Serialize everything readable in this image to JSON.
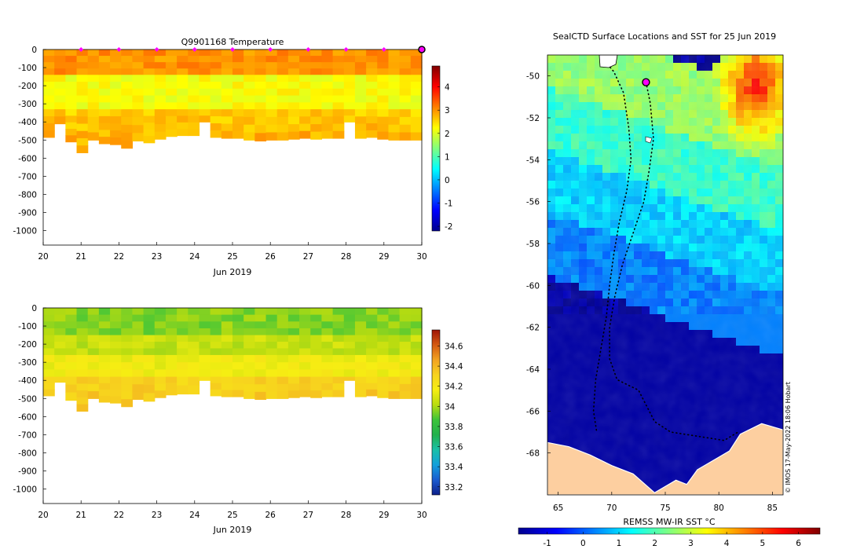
{
  "colors": {
    "jet": [
      "#00008f",
      "#0000ff",
      "#0080ff",
      "#00ffff",
      "#80ff80",
      "#ffff00",
      "#ff8000",
      "#ff0000",
      "#800000"
    ],
    "parula": [
      "#0d1f8a",
      "#1a5bd0",
      "#12a0dc",
      "#19c0a8",
      "#22b14c",
      "#3cc43a",
      "#b9dc10",
      "#f6ee12",
      "#f7d31e",
      "#f2a321",
      "#d55a12",
      "#9e1406"
    ],
    "land": "#fdcfa0",
    "profile_marker": "#ff00ff",
    "track": "#000000"
  },
  "chart_data": [
    {
      "type": "heatmap",
      "name": "temperature-section",
      "title": "Q9901168  Temperature",
      "xlabel": "Jun 2019",
      "ylabel": "",
      "x_ticks": [
        "20",
        "21",
        "22",
        "23",
        "24",
        "25",
        "26",
        "27",
        "28",
        "29",
        "30"
      ],
      "x_range": [
        20,
        30
      ],
      "y_ticks": [
        "0",
        "-100",
        "-200",
        "-300",
        "-400",
        "-500",
        "-600",
        "-700",
        "-800",
        "-900",
        "-1000"
      ],
      "y_range": [
        -1080,
        0
      ],
      "colorbar_ticks": [
        "4",
        "3",
        "2",
        "1",
        "0",
        "-1",
        "-2"
      ],
      "colorbar_range": [
        -2.2,
        4.9
      ],
      "colormap": "jet",
      "grid": false,
      "profile_dates": [
        21,
        22,
        23,
        24,
        25,
        26,
        27,
        28,
        29
      ],
      "last_profile_date": 30,
      "layers": [
        {
          "top": 0,
          "bottom": -140,
          "value": 3.0
        },
        {
          "top": -140,
          "bottom": -330,
          "value": 2.2
        },
        {
          "top": -330,
          "bottom": -1000,
          "value": 2.6
        }
      ],
      "profile_max_depths": [
        -485,
        -410,
        -510,
        -570,
        -500,
        -520,
        -525,
        -545,
        -505,
        -515,
        -495,
        -480,
        -475,
        -475,
        -400,
        -485,
        -490,
        -490,
        -500,
        -505,
        -500,
        -500,
        -495,
        -490,
        -495,
        -490,
        -490,
        -400,
        -490,
        -485,
        -495,
        -500,
        -500,
        -500
      ]
    },
    {
      "type": "heatmap",
      "name": "salinity-section",
      "title": "",
      "xlabel": "Jun 2019",
      "ylabel": "",
      "x_ticks": [
        "20",
        "21",
        "22",
        "23",
        "24",
        "25",
        "26",
        "27",
        "28",
        "29",
        "30"
      ],
      "x_range": [
        20,
        30
      ],
      "y_ticks": [
        "0",
        "-100",
        "-200",
        "-300",
        "-400",
        "-500",
        "-600",
        "-700",
        "-800",
        "-900",
        "-1000"
      ],
      "y_range": [
        -1080,
        0
      ],
      "colorbar_ticks": [
        "34.6",
        "34.4",
        "34.2",
        "34",
        "33.8",
        "33.6",
        "33.4",
        "33.2"
      ],
      "colorbar_range": [
        33.12,
        34.76
      ],
      "colormap": "parula",
      "grid": false,
      "layers": [
        {
          "top": 0,
          "bottom": -150,
          "value": 33.95
        },
        {
          "top": -150,
          "bottom": -260,
          "value": 34.05
        },
        {
          "top": -260,
          "bottom": -380,
          "value": 34.16
        },
        {
          "top": -380,
          "bottom": -1000,
          "value": 34.3
        }
      ],
      "profile_max_depths": [
        -485,
        -410,
        -510,
        -570,
        -500,
        -520,
        -525,
        -545,
        -505,
        -515,
        -495,
        -480,
        -475,
        -475,
        -400,
        -485,
        -490,
        -490,
        -500,
        -505,
        -500,
        -500,
        -495,
        -490,
        -495,
        -490,
        -490,
        -400,
        -490,
        -485,
        -495,
        -500,
        -500,
        -500
      ]
    },
    {
      "type": "heatmap",
      "name": "sst-map",
      "title": "SealCTD Surface Locations and SST for 25 Jun 2019",
      "xlabel": "",
      "ylabel": "",
      "x_ticks": [
        "65",
        "70",
        "75",
        "80",
        "85"
      ],
      "x_range": [
        64,
        86
      ],
      "y_ticks": [
        "-50",
        "-52",
        "-54",
        "-56",
        "-58",
        "-60",
        "-62",
        "-64",
        "-66",
        "-68"
      ],
      "y_range": [
        -70,
        -49
      ],
      "colorbar_label": "REMSS MW-IR SST °C",
      "colorbar_ticks": [
        "-1",
        "0",
        "1",
        "2",
        "3",
        "4",
        "5",
        "6"
      ],
      "colorbar_range": [
        -1.8,
        6.6
      ],
      "colormap": "jet",
      "credit": "© IMOS 17-May-2022 18:06 Hobart",
      "sst_zones": [
        {
          "lat_top": -49.1,
          "lat_bottom": -52.5,
          "value": 2.6
        },
        {
          "lat_top": -52.5,
          "lat_bottom": -55.5,
          "value": 1.8
        },
        {
          "lat_top": -55.5,
          "lat_bottom": -58.5,
          "value": 1.0
        },
        {
          "lat_top": -58.5,
          "lat_bottom": -61.5,
          "value": 0.3
        },
        {
          "lat_top": -61.5,
          "lat_bottom": -70,
          "value": -1.6
        }
      ],
      "warm_patch": {
        "lon": 83.5,
        "lat": -50.5,
        "value": 5.5
      },
      "current_position": {
        "lon": 73.2,
        "lat": -50.3
      },
      "track_outbound": [
        [
          69.4,
          -49.3
        ],
        [
          70.2,
          -49.8
        ],
        [
          71.1,
          -50.8
        ],
        [
          71.6,
          -52.5
        ],
        [
          71.8,
          -54.0
        ],
        [
          71.4,
          -55.5
        ],
        [
          70.7,
          -57.0
        ],
        [
          70.2,
          -58.5
        ],
        [
          69.8,
          -60.0
        ],
        [
          69.5,
          -61.5
        ],
        [
          69.0,
          -63.0
        ],
        [
          68.5,
          -64.5
        ],
        [
          68.3,
          -66.0
        ],
        [
          68.6,
          -67.0
        ]
      ],
      "track_return": [
        [
          73.2,
          -50.3
        ],
        [
          73.6,
          -51.3
        ],
        [
          73.9,
          -53.0
        ],
        [
          73.5,
          -54.5
        ],
        [
          73.0,
          -56.0
        ],
        [
          72.0,
          -57.5
        ],
        [
          71.0,
          -59.0
        ],
        [
          70.3,
          -60.5
        ],
        [
          69.8,
          -62.0
        ],
        [
          69.8,
          -63.5
        ],
        [
          70.5,
          -64.5
        ],
        [
          72.5,
          -65.0
        ],
        [
          74.0,
          -66.5
        ],
        [
          75.5,
          -67.0
        ],
        [
          78.0,
          -67.2
        ],
        [
          80.5,
          -67.4
        ],
        [
          81.8,
          -67.0
        ]
      ],
      "antarctic_coast": [
        [
          64,
          -67.5
        ],
        [
          66,
          -67.7
        ],
        [
          68,
          -68.1
        ],
        [
          70,
          -68.6
        ],
        [
          72,
          -69.0
        ],
        [
          74,
          -69.9
        ],
        [
          76,
          -69.3
        ],
        [
          77,
          -69.5
        ],
        [
          78,
          -68.8
        ],
        [
          80,
          -68.2
        ],
        [
          81,
          -67.9
        ],
        [
          82,
          -67.1
        ],
        [
          84,
          -66.6
        ],
        [
          86,
          -66.9
        ]
      ]
    }
  ]
}
